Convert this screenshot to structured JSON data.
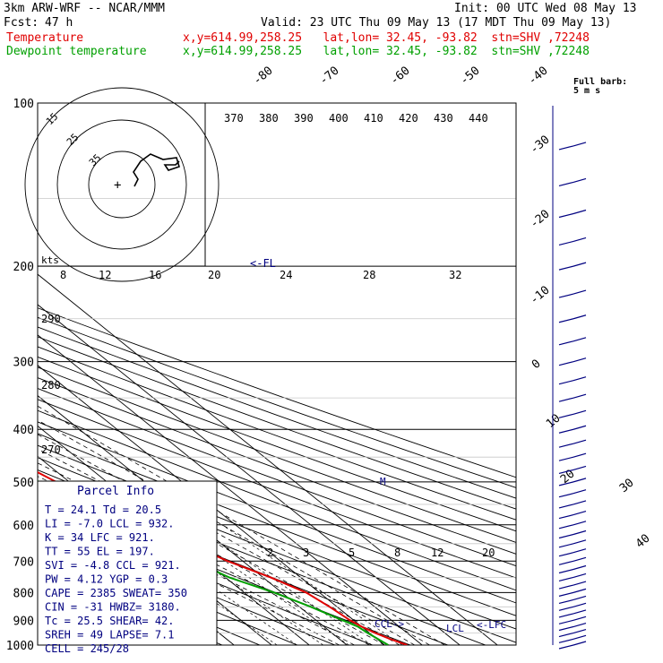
{
  "header": {
    "model": "3km ARW-WRF -- NCAR/MMM",
    "init": "Init: 00 UTC Wed 08 May 13",
    "fcst_label": "Fcst:",
    "fcst_value": "47 h",
    "valid": "Valid: 23 UTC Thu 09 May 13 (17 MDT Thu 09 May 13)",
    "temp_label": "Temperature",
    "temp_info": "x,y=614.99,258.25   lat,lon= 32.45, -93.82  stn=SHV ,72248",
    "dew_label": "Dewpoint temperature",
    "dew_info": "x,y=614.99,258.25   lat,lon= 32.45, -93.82  stn=SHV ,72248"
  },
  "colors": {
    "temperature": "#e00000",
    "dewpoint": "#00a000",
    "info": "#000080"
  },
  "chart_data": {
    "type": "line",
    "y_axis": "pressure (mb)",
    "ylim": [
      1000,
      100
    ],
    "pressure_ticks": [
      "100",
      "200",
      "300",
      "400",
      "500",
      "600",
      "700",
      "800",
      "900",
      "1000"
    ],
    "isotherm_labels": [
      "-80",
      "-70",
      "-60",
      "-50",
      "-40",
      "-30",
      "-20",
      "-10",
      "0",
      "10",
      "20",
      "30",
      "40"
    ],
    "theta_labels": [
      "370",
      "380",
      "390",
      "400",
      "410",
      "420",
      "430",
      "440"
    ],
    "theta_upper_labels": [
      "290",
      "280",
      "270"
    ],
    "mixing_ratio_labels": [
      "2",
      "3",
      "5",
      "8",
      "12",
      "20"
    ],
    "knots_label": "kts",
    "wind_speed_labels": [
      "8",
      "12",
      "16",
      "20",
      "24",
      "28",
      "32"
    ],
    "hodo_ring_labels": [
      "15",
      "25",
      "35"
    ],
    "barb_legend": "Full barb:\n5 m s",
    "temperature": [
      {
        "p": 1000,
        "t": 26
      },
      {
        "p": 975,
        "t": 23.5
      },
      {
        "p": 950,
        "t": 21.5
      },
      {
        "p": 925,
        "t": 20
      },
      {
        "p": 900,
        "t": 19
      },
      {
        "p": 850,
        "t": 18
      },
      {
        "p": 800,
        "t": 16.5
      },
      {
        "p": 750,
        "t": 12
      },
      {
        "p": 700,
        "t": 6
      },
      {
        "p": 650,
        "t": 1.5
      },
      {
        "p": 600,
        "t": -4.5
      },
      {
        "p": 550,
        "t": -9
      },
      {
        "p": 500,
        "t": -13.5
      },
      {
        "p": 450,
        "t": -18
      },
      {
        "p": 400,
        "t": -23.5
      },
      {
        "p": 350,
        "t": -30
      },
      {
        "p": 300,
        "t": -37
      },
      {
        "p": 275,
        "t": -39
      },
      {
        "p": 250,
        "t": -44
      },
      {
        "p": 225,
        "t": -49
      },
      {
        "p": 200,
        "t": -55
      },
      {
        "p": 185,
        "t": -53
      },
      {
        "p": 170,
        "t": -51
      },
      {
        "p": 150,
        "t": -54
      },
      {
        "p": 130,
        "t": -58
      },
      {
        "p": 115,
        "t": -61
      },
      {
        "p": 100,
        "t": -64
      }
    ],
    "dewpoint": [
      {
        "p": 1000,
        "t": 21
      },
      {
        "p": 950,
        "t": 19.5
      },
      {
        "p": 925,
        "t": 19
      },
      {
        "p": 900,
        "t": 17
      },
      {
        "p": 850,
        "t": 13
      },
      {
        "p": 800,
        "t": 8
      },
      {
        "p": 750,
        "t": 1
      },
      {
        "p": 700,
        "t": -3
      },
      {
        "p": 650,
        "t": -5
      },
      {
        "p": 600,
        "t": -8
      },
      {
        "p": 550,
        "t": -13
      },
      {
        "p": 500,
        "t": -18
      },
      {
        "p": 450,
        "t": -24
      },
      {
        "p": 400,
        "t": -30
      },
      {
        "p": 350,
        "t": -37
      },
      {
        "p": 300,
        "t": -45
      },
      {
        "p": 275,
        "t": -49
      },
      {
        "p": 250,
        "t": -54
      },
      {
        "p": 225,
        "t": -60
      },
      {
        "p": 200,
        "t": -65
      },
      {
        "p": 180,
        "t": -66
      },
      {
        "p": 165,
        "t": -60
      },
      {
        "p": 150,
        "t": -64
      },
      {
        "p": 130,
        "t": -72
      },
      {
        "p": 115,
        "t": -74
      },
      {
        "p": 100,
        "t": -74
      }
    ],
    "wind_barb_pressures": [
      1000,
      975,
      950,
      925,
      900,
      875,
      850,
      825,
      800,
      775,
      750,
      725,
      700,
      675,
      650,
      625,
      600,
      575,
      550,
      525,
      500,
      475,
      450,
      425,
      400,
      375,
      350,
      325,
      300,
      275,
      250,
      225,
      200,
      180,
      160,
      140,
      120,
      100
    ],
    "annotations": {
      "fl": "<-FL",
      "m": "M",
      "ccl": "CCL->",
      "lcl": "LCL",
      "lfc": "<-LFC"
    }
  },
  "parcel_info": {
    "title": "Parcel Info",
    "rows": [
      "T   =   24.1  Td  =  20.5",
      "LI  =   -7.0  LCL =  932.",
      "K   =     34  LFC =  921.",
      "TT  =     55  EL  =  197.",
      "SVI =   -4.8  CCL =  921.",
      "PW  =   4.12  YGP =   0.3",
      "CAPE =  2385  SWEAT=  350",
      "CIN  =   -31  HWBZ= 3180.",
      "Tc  =   25.5  SHEAR=  42.",
      "SREH =    49  LAPSE=  7.1",
      "CELL = 245/28"
    ]
  }
}
